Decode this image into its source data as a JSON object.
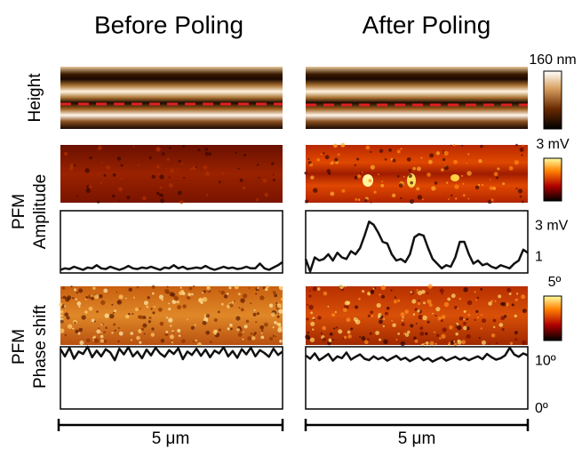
{
  "titles": [
    "Before Poling",
    "After Poling"
  ],
  "row_labels": {
    "height": "Height",
    "pfm_amplitude": "PFM",
    "amplitude": "Amplitude",
    "pfm_phase": "PFM",
    "phase": "Phase shift"
  },
  "colorbars": [
    "160 nm",
    "3 mV",
    "5º"
  ],
  "scale_bars": [
    "5 μm",
    "5 μm"
  ],
  "chart_data": [
    {
      "type": "line",
      "color": "#111111",
      "ylim": [
        0,
        4
      ],
      "values": [
        0.2,
        0.3,
        0.25,
        0.4,
        0.3,
        0.2,
        0.35,
        0.3,
        0.5,
        0.3,
        0.25,
        0.4,
        0.3,
        0.2,
        0.3,
        0.45,
        0.3,
        0.25,
        0.35,
        0.3,
        0.4,
        0.3,
        0.2,
        0.35,
        0.3,
        0.5,
        0.3,
        0.4,
        0.25,
        0.3,
        0.35,
        0.3,
        0.45,
        0.3,
        0.2,
        0.3,
        0.4,
        0.3,
        0.35,
        0.25,
        0.3,
        0.4,
        0.3,
        0.3,
        0.6,
        0.3,
        0.2,
        0.35,
        0.5,
        0.7
      ]
    },
    {
      "type": "line",
      "color": "#111111",
      "ylim": [
        0,
        4
      ],
      "yticks": [
        {
          "value": 3,
          "label": "3 mV"
        },
        1
      ],
      "values": [
        0.9,
        0.1,
        1.0,
        0.8,
        0.9,
        1.2,
        0.8,
        1.3,
        1.0,
        0.9,
        1.4,
        1.2,
        1.6,
        2.4,
        3.3,
        3.1,
        2.6,
        2.0,
        1.9,
        1.2,
        0.8,
        0.9,
        0.7,
        1.2,
        2.3,
        2.5,
        2.4,
        1.6,
        0.9,
        0.6,
        0.3,
        0.5,
        0.4,
        1.0,
        2.0,
        2.0,
        1.2,
        0.6,
        0.8,
        0.5,
        0.6,
        0.4,
        0.3,
        0.5,
        0.4,
        0.3,
        0.6,
        0.8,
        1.5,
        1.3
      ]
    },
    {
      "type": "line",
      "color": "#111111",
      "ylim": [
        0,
        13
      ],
      "values": [
        12.5,
        11,
        12.8,
        10.5,
        12,
        11.5,
        13,
        10.8,
        12.2,
        11,
        12.5,
        11.8,
        10.2,
        12.6,
        11.4,
        12.9,
        11,
        12,
        10.6,
        12.4,
        11.2,
        12.8,
        11.6,
        10.9,
        12.3,
        11.5,
        12.7,
        10.4,
        12,
        11.3,
        12.6,
        11.1,
        12.4,
        10.8,
        12.2,
        11.6,
        12.9,
        11,
        12.1,
        10.7,
        12.5,
        11.4,
        12.8,
        11,
        12.3,
        11.7,
        10.9,
        12.6,
        11.3,
        12
      ]
    },
    {
      "type": "line",
      "color": "#111111",
      "ylim": [
        0,
        13
      ],
      "yticks": [
        {
          "value": 10,
          "label": "10º"
        },
        {
          "value": 0,
          "label": "0º"
        }
      ],
      "values": [
        11.2,
        10.5,
        11.6,
        10.2,
        10.8,
        11.5,
        10.1,
        11,
        10.6,
        11.8,
        10.3,
        10.9,
        11.4,
        10.5,
        10.2,
        11,
        10.4,
        10.8,
        10.1,
        10.6,
        11.1,
        10.3,
        10.7,
        10,
        10.5,
        11,
        10.2,
        10.6,
        9.9,
        10.4,
        10.8,
        10.1,
        10.5,
        10.9,
        10.3,
        10.7,
        10.2,
        10.6,
        11,
        10.4,
        11.5,
        10.8,
        10.3,
        10.6,
        11.2,
        12.8,
        11.4,
        10.9,
        11.6,
        11.2
      ]
    }
  ]
}
